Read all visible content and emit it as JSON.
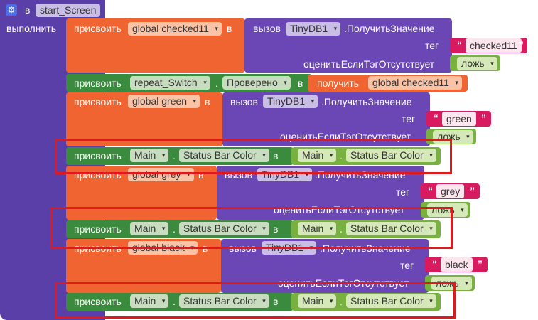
{
  "event": {
    "keyword": "в",
    "name": "start_Screen",
    "do_label": "выполнить"
  },
  "common": {
    "set": "присвоить",
    "to": "в",
    "get": "получить",
    "call": "вызов",
    "dot": ".",
    "tinydb": "TinyDB1",
    "get_value": ".ПолучитьЗначение",
    "tag": "тег",
    "value_if_absent": "оценитьЕслиТэгОтсутствует",
    "false": "ложь",
    "main": "Main",
    "status_bar_color": "Status Bar Color",
    "repeat_switch": "repeat_Switch",
    "checked": "Проверено",
    "quote_open": "“",
    "quote_close": "”"
  },
  "vars": {
    "checked11": "global checked11",
    "green": "global green",
    "grey": "global grey",
    "black": "global black"
  },
  "tags": {
    "checked11": "checked11",
    "green": "green",
    "grey": "grey",
    "black": "black"
  },
  "colors": {
    "event_purple": "#5b3fa8",
    "proc_purple": "#6a47b5",
    "var_orange": "#f06431",
    "comp_green": "#3b8b3f",
    "logic_green": "#79b141",
    "text_pink": "#d81b60",
    "highlight_red": "#e0191d"
  }
}
